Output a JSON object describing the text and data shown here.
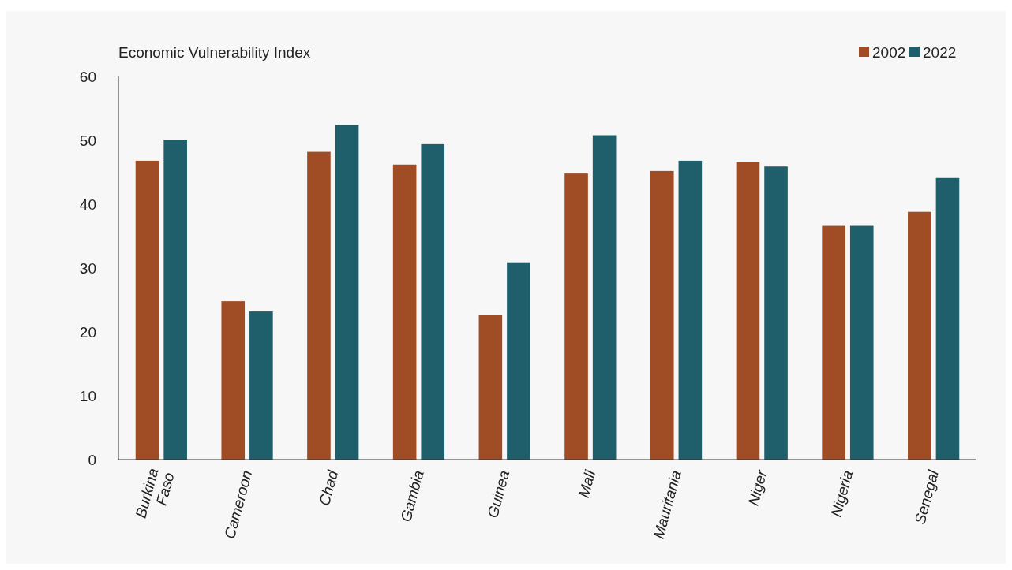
{
  "chart_data": {
    "type": "bar",
    "title": "Economic Vulnerability Index",
    "categories": [
      "Burkina Faso",
      "Cameroon",
      "Chad",
      "Gambia",
      "Guinea",
      "Mali",
      "Mauritania",
      "Niger",
      "Nigeria",
      "Senegal"
    ],
    "series": [
      {
        "name": "2002",
        "color": "#a04d26",
        "values": [
          46.8,
          24.8,
          48.2,
          46.2,
          22.6,
          44.8,
          45.2,
          46.6,
          36.6,
          38.8
        ]
      },
      {
        "name": "2022",
        "color": "#1e5f6b",
        "values": [
          50.1,
          23.2,
          52.4,
          49.4,
          30.9,
          50.8,
          46.8,
          45.9,
          36.6,
          44.1
        ]
      }
    ],
    "ylim": [
      0,
      60
    ],
    "yticks": [
      0,
      10,
      20,
      30,
      40,
      50,
      60
    ],
    "grid": false,
    "legend": "top right"
  }
}
